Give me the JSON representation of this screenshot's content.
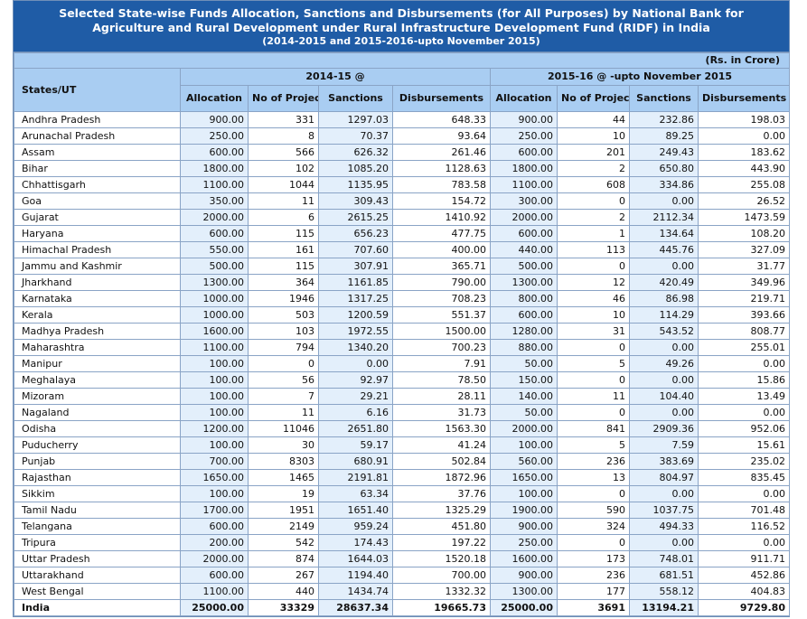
{
  "header": {
    "title": "Selected State-wise Funds Allocation, Sanctions and Disbursements (for All Purposes) by National Bank for Agriculture and Rural Development under Rural Infrastructure Development Fund (RIDF) in India",
    "subtitle": "(2014-2015 and 2015-2016-upto November 2015)"
  },
  "table": {
    "unit": "(Rs. in Crore)",
    "row_header": "States/UT",
    "groups": [
      "2014-15 @",
      "2015-16 @ -upto November 2015"
    ],
    "columns": [
      "Allocation",
      "No of Projects",
      "Sanctions",
      "Disbursements",
      "Allocation",
      "No of Projects",
      "Sanctions",
      "Disbursements"
    ],
    "rows": [
      [
        "Andhra Pradesh",
        "900.00",
        "331",
        "1297.03",
        "648.33",
        "900.00",
        "44",
        "232.86",
        "198.03"
      ],
      [
        "Arunachal Pradesh",
        "250.00",
        "8",
        "70.37",
        "93.64",
        "250.00",
        "10",
        "89.25",
        "0.00"
      ],
      [
        "Assam",
        "600.00",
        "566",
        "626.32",
        "261.46",
        "600.00",
        "201",
        "249.43",
        "183.62"
      ],
      [
        "Bihar",
        "1800.00",
        "102",
        "1085.20",
        "1128.63",
        "1800.00",
        "2",
        "650.80",
        "443.90"
      ],
      [
        "Chhattisgarh",
        "1100.00",
        "1044",
        "1135.95",
        "783.58",
        "1100.00",
        "608",
        "334.86",
        "255.08"
      ],
      [
        "Goa",
        "350.00",
        "11",
        "309.43",
        "154.72",
        "300.00",
        "0",
        "0.00",
        "26.52"
      ],
      [
        "Gujarat",
        "2000.00",
        "6",
        "2615.25",
        "1410.92",
        "2000.00",
        "2",
        "2112.34",
        "1473.59"
      ],
      [
        "Haryana",
        "600.00",
        "115",
        "656.23",
        "477.75",
        "600.00",
        "1",
        "134.64",
        "108.20"
      ],
      [
        "Himachal Pradesh",
        "550.00",
        "161",
        "707.60",
        "400.00",
        "440.00",
        "113",
        "445.76",
        "327.09"
      ],
      [
        "Jammu and Kashmir",
        "500.00",
        "115",
        "307.91",
        "365.71",
        "500.00",
        "0",
        "0.00",
        "31.77"
      ],
      [
        "Jharkhand",
        "1300.00",
        "364",
        "1161.85",
        "790.00",
        "1300.00",
        "12",
        "420.49",
        "349.96"
      ],
      [
        "Karnataka",
        "1000.00",
        "1946",
        "1317.25",
        "708.23",
        "800.00",
        "46",
        "86.98",
        "219.71"
      ],
      [
        "Kerala",
        "1000.00",
        "503",
        "1200.59",
        "551.37",
        "600.00",
        "10",
        "114.29",
        "393.66"
      ],
      [
        "Madhya Pradesh",
        "1600.00",
        "103",
        "1972.55",
        "1500.00",
        "1280.00",
        "31",
        "543.52",
        "808.77"
      ],
      [
        "Maharashtra",
        "1100.00",
        "794",
        "1340.20",
        "700.23",
        "880.00",
        "0",
        "0.00",
        "255.01"
      ],
      [
        "Manipur",
        "100.00",
        "0",
        "0.00",
        "7.91",
        "50.00",
        "5",
        "49.26",
        "0.00"
      ],
      [
        "Meghalaya",
        "100.00",
        "56",
        "92.97",
        "78.50",
        "150.00",
        "0",
        "0.00",
        "15.86"
      ],
      [
        "Mizoram",
        "100.00",
        "7",
        "29.21",
        "28.11",
        "140.00",
        "11",
        "104.40",
        "13.49"
      ],
      [
        "Nagaland",
        "100.00",
        "11",
        "6.16",
        "31.73",
        "50.00",
        "0",
        "0.00",
        "0.00"
      ],
      [
        "Odisha",
        "1200.00",
        "11046",
        "2651.80",
        "1563.30",
        "2000.00",
        "841",
        "2909.36",
        "952.06"
      ],
      [
        "Puducherry",
        "100.00",
        "30",
        "59.17",
        "41.24",
        "100.00",
        "5",
        "7.59",
        "15.61"
      ],
      [
        "Punjab",
        "700.00",
        "8303",
        "680.91",
        "502.84",
        "560.00",
        "236",
        "383.69",
        "235.02"
      ],
      [
        "Rajasthan",
        "1650.00",
        "1465",
        "2191.81",
        "1872.96",
        "1650.00",
        "13",
        "804.97",
        "835.45"
      ],
      [
        "Sikkim",
        "100.00",
        "19",
        "63.34",
        "37.76",
        "100.00",
        "0",
        "0.00",
        "0.00"
      ],
      [
        "Tamil Nadu",
        "1700.00",
        "1951",
        "1651.40",
        "1325.29",
        "1900.00",
        "590",
        "1037.75",
        "701.48"
      ],
      [
        "Telangana",
        "600.00",
        "2149",
        "959.24",
        "451.80",
        "900.00",
        "324",
        "494.33",
        "116.52"
      ],
      [
        "Tripura",
        "200.00",
        "542",
        "174.43",
        "197.22",
        "250.00",
        "0",
        "0.00",
        "0.00"
      ],
      [
        "Uttar Pradesh",
        "2000.00",
        "874",
        "1644.03",
        "1520.18",
        "1600.00",
        "173",
        "748.01",
        "911.71"
      ],
      [
        "Uttarakhand",
        "600.00",
        "267",
        "1194.40",
        "700.00",
        "900.00",
        "236",
        "681.51",
        "452.86"
      ],
      [
        "West Bengal",
        "1100.00",
        "440",
        "1434.74",
        "1332.32",
        "1300.00",
        "177",
        "558.12",
        "404.83"
      ],
      [
        "India",
        "25000.00",
        "33329",
        "28637.34",
        "19665.73",
        "25000.00",
        "3691",
        "13194.21",
        "9729.80"
      ]
    ]
  }
}
